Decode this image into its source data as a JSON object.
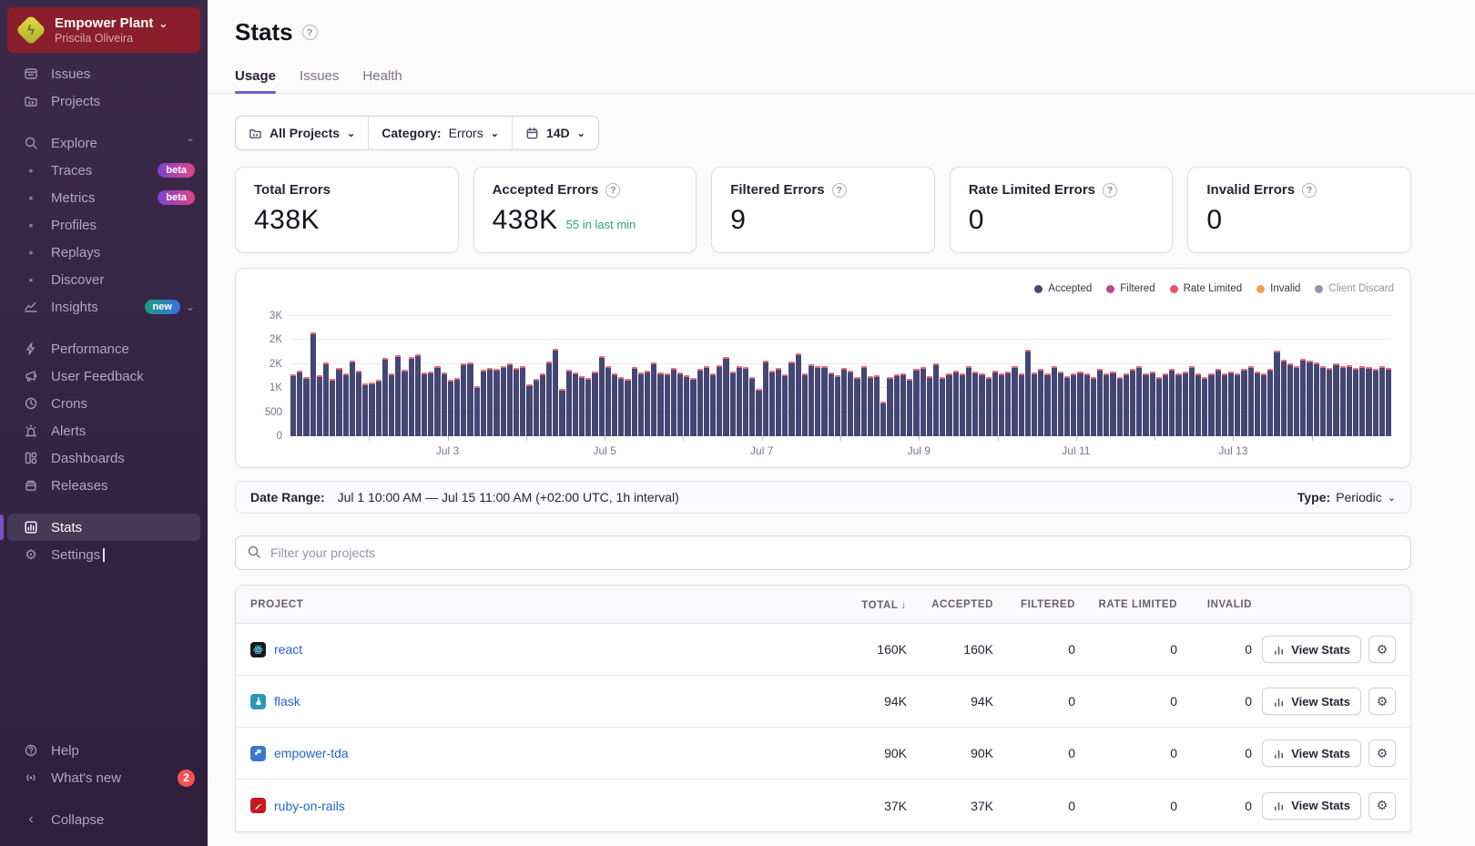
{
  "org": {
    "name": "Empower Plant",
    "user": "Priscila Oliveira"
  },
  "icons": {
    "chevron_down": "⌄",
    "chevron_up": "⌃",
    "collapse": "‹",
    "gear": "⚙",
    "question": "?",
    "bullet": "•",
    "sort_down": "↓",
    "bolt": "ϟ"
  },
  "badges": {
    "beta": "beta",
    "new": "new",
    "whats_new_count": "2"
  },
  "sidebar": {
    "items": [
      {
        "label": "Issues"
      },
      {
        "label": "Projects"
      },
      {
        "label": "Explore"
      },
      {
        "label": "Traces"
      },
      {
        "label": "Metrics"
      },
      {
        "label": "Profiles"
      },
      {
        "label": "Replays"
      },
      {
        "label": "Discover"
      },
      {
        "label": "Insights"
      },
      {
        "label": "Performance"
      },
      {
        "label": "User Feedback"
      },
      {
        "label": "Crons"
      },
      {
        "label": "Alerts"
      },
      {
        "label": "Dashboards"
      },
      {
        "label": "Releases"
      },
      {
        "label": "Stats"
      },
      {
        "label": "Settings"
      },
      {
        "label": "Help"
      },
      {
        "label": "What's new"
      },
      {
        "label": "Collapse"
      }
    ]
  },
  "header": {
    "title": "Stats",
    "tabs": [
      {
        "label": "Usage"
      },
      {
        "label": "Issues"
      },
      {
        "label": "Health"
      }
    ]
  },
  "filters": {
    "all_projects": "All Projects",
    "category_label": "Category:",
    "category_value": "Errors",
    "period": "14D"
  },
  "cards": [
    {
      "title": "Total Errors",
      "value": "438K"
    },
    {
      "title": "Accepted Errors",
      "value": "438K",
      "note": "55 in last min"
    },
    {
      "title": "Filtered Errors",
      "value": "9"
    },
    {
      "title": "Rate Limited Errors",
      "value": "0"
    },
    {
      "title": "Invalid Errors",
      "value": "0"
    }
  ],
  "chart_data": {
    "type": "bar",
    "title": "Errors over time (1h interval)",
    "ylim": [
      0,
      3000
    ],
    "days": 14,
    "grid": true,
    "legend_position": "top-right",
    "y_ticks": [
      "0",
      "500",
      "1K",
      "2K",
      "2K",
      "3K"
    ],
    "x_labels": [
      "Jul 3",
      "Jul 5",
      "Jul 7",
      "Jul 9",
      "Jul 11",
      "Jul 13"
    ],
    "bar_color": "#444674",
    "cap_color": "#ee6a78",
    "legend": [
      {
        "label": "Accepted",
        "color": "#444674"
      },
      {
        "label": "Filtered",
        "color": "#b44b8e"
      },
      {
        "label": "Rate Limited",
        "color": "#ef4e63"
      },
      {
        "label": "Invalid",
        "color": "#f29e4c"
      },
      {
        "label": "Client Discard",
        "color": "#9d8fad"
      }
    ],
    "series": [
      {
        "name": "Accepted",
        "values": [
          1550,
          1630,
          1480,
          2600,
          1520,
          1850,
          1440,
          1700,
          1560,
          1890,
          1630,
          1320,
          1350,
          1420,
          1950,
          1560,
          2020,
          1660,
          1980,
          2040,
          1590,
          1620,
          1750,
          1580,
          1400,
          1450,
          1820,
          1840,
          1260,
          1660,
          1700,
          1690,
          1750,
          1820,
          1700,
          1760,
          1300,
          1440,
          1560,
          1860,
          2180,
          1180,
          1660,
          1580,
          1500,
          1460,
          1620,
          2010,
          1760,
          1560,
          1480,
          1440,
          1720,
          1580,
          1640,
          1840,
          1600,
          1560,
          1700,
          1580,
          1520,
          1460,
          1680,
          1740,
          1560,
          1780,
          1980,
          1620,
          1760,
          1720,
          1480,
          1180,
          1880,
          1640,
          1700,
          1540,
          1860,
          2060,
          1560,
          1800,
          1740,
          1760,
          1580,
          1520,
          1700,
          1640,
          1480,
          1740,
          1500,
          1520,
          860,
          1480,
          1540,
          1560,
          1440,
          1680,
          1720,
          1500,
          1820,
          1480,
          1560,
          1640,
          1560,
          1740,
          1620,
          1560,
          1480,
          1640,
          1560,
          1620,
          1740,
          1560,
          2160,
          1580,
          1680,
          1560,
          1740,
          1620,
          1500,
          1560,
          1620,
          1560,
          1480,
          1680,
          1560,
          1620,
          1480,
          1560,
          1680,
          1740,
          1560,
          1620,
          1480,
          1560,
          1680,
          1560,
          1620,
          1740,
          1560,
          1480,
          1560,
          1680,
          1560,
          1620,
          1560,
          1680,
          1740,
          1620,
          1560,
          1680,
          2140,
          1900,
          1820,
          1760,
          1940,
          1880,
          1840,
          1760,
          1700,
          1820,
          1740,
          1780,
          1700,
          1760,
          1720,
          1680,
          1740,
          1700
        ]
      }
    ]
  },
  "date_range": {
    "label": "Date Range:",
    "value": "Jul 1 10:00 AM — Jul 15 11:00 AM (+02:00 UTC, 1h interval)",
    "type_label": "Type:",
    "type_value": "Periodic"
  },
  "search": {
    "placeholder": "Filter your projects"
  },
  "table": {
    "columns": [
      "PROJECT",
      "TOTAL",
      "ACCEPTED",
      "FILTERED",
      "RATE LIMITED",
      "INVALID"
    ],
    "view_stats_label": "View Stats",
    "rows": [
      {
        "name": "react",
        "icon": "react-icon",
        "total": "160K",
        "accepted": "160K",
        "filtered": "0",
        "rate_limited": "0",
        "invalid": "0"
      },
      {
        "name": "flask",
        "icon": "flask-icon",
        "total": "94K",
        "accepted": "94K",
        "filtered": "0",
        "rate_limited": "0",
        "invalid": "0"
      },
      {
        "name": "empower-tda",
        "icon": "python-icon",
        "total": "90K",
        "accepted": "90K",
        "filtered": "0",
        "rate_limited": "0",
        "invalid": "0"
      },
      {
        "name": "ruby-on-rails",
        "icon": "rails-icon",
        "total": "37K",
        "accepted": "37K",
        "filtered": "0",
        "rate_limited": "0",
        "invalid": "0"
      }
    ]
  }
}
